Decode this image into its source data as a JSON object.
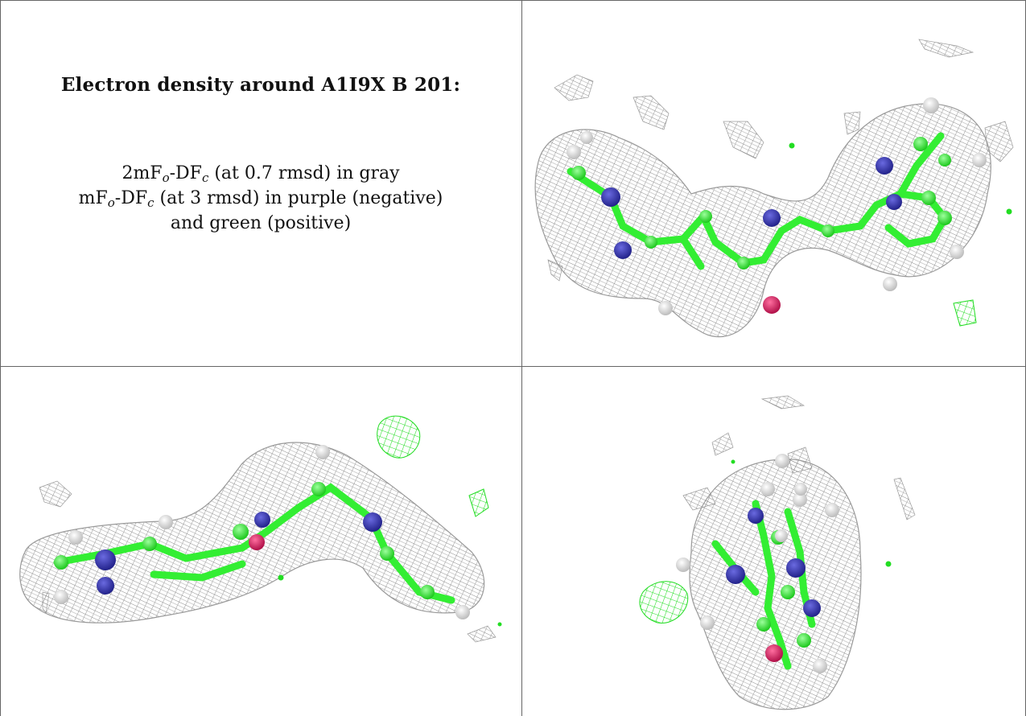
{
  "caption": {
    "title": "Electron density around A1I9X B 201:",
    "line1": {
      "part1": "2mF",
      "sub1": "o",
      "part2": "-DF",
      "sub2": "c",
      "rest": " (at 0.7 rmsd) in gray"
    },
    "line2": {
      "part1": "mF",
      "sub1": "o",
      "part2": "-DF",
      "sub2": "c",
      "rest": " (at 3 rmsd) in purple (negative)"
    },
    "line3": "and green (positive)"
  },
  "colors": {
    "mesh_gray": "#9a9a9a",
    "carbon_green": "#33ee33",
    "nitrogen_blue": "#3333aa",
    "oxygen_red": "#dd2266",
    "hydrogen_white": "#e8e8e8",
    "positive_density_green": "#22dd22"
  },
  "panels": [
    {
      "view": "top-right"
    },
    {
      "view": "bottom-left"
    },
    {
      "view": "bottom-right"
    }
  ]
}
